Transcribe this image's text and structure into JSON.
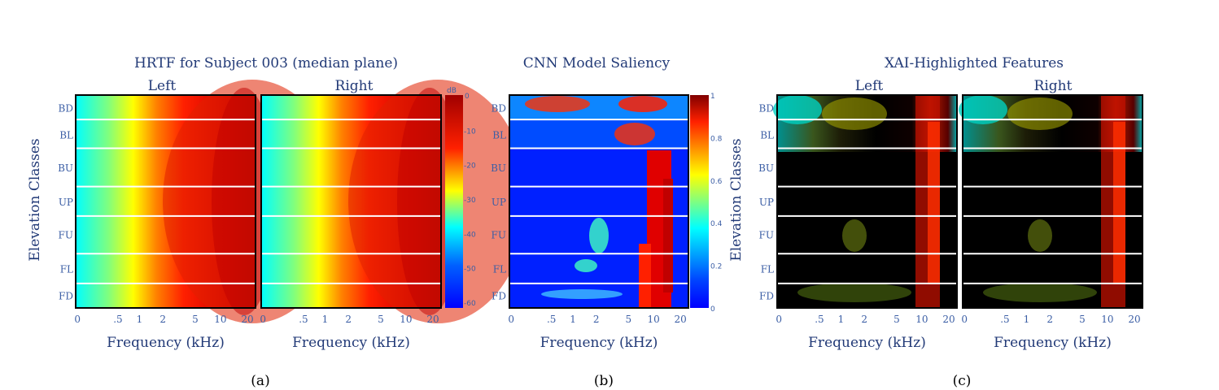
{
  "chart_data": [
    {
      "type": "heatmap",
      "title": "HRTF for Subject 003 (median plane)",
      "caption": "(a)",
      "panels": [
        "Left",
        "Right"
      ],
      "ylabel": "Elevation Classes",
      "xlabel": "Frequency (kHz)",
      "x_ticks": [
        "0",
        ".5",
        "1",
        "2",
        "5",
        "10",
        "20"
      ],
      "x_tick_values_khz": [
        0,
        0.5,
        1,
        2,
        5,
        10,
        20
      ],
      "elevation_classes": [
        "BD",
        "BL",
        "BU",
        "UP",
        "FU",
        "FL",
        "FD"
      ],
      "colorbar": {
        "unit": "dB",
        "ticks": [
          "0",
          "-10",
          "-20",
          "-30",
          "-40",
          "-50",
          "-60"
        ],
        "range": [
          -65,
          0
        ],
        "colormap": "jet"
      }
    },
    {
      "type": "heatmap",
      "title": "CNN Model Saliency",
      "caption": "(b)",
      "xlabel": "Frequency (kHz)",
      "x_ticks": [
        "0",
        ".5",
        "1",
        "2",
        "5",
        "10",
        "20"
      ],
      "x_tick_values_khz": [
        0,
        0.5,
        1,
        2,
        5,
        10,
        20
      ],
      "elevation_classes": [
        "BD",
        "BL",
        "BU",
        "UP",
        "FU",
        "FL",
        "FD"
      ],
      "colorbar": {
        "ticks": [
          "1",
          "0.8",
          "0.6",
          "0.4",
          "0.2",
          "0"
        ],
        "range": [
          0,
          1
        ],
        "colormap": "jet"
      }
    },
    {
      "type": "heatmap",
      "title": "XAI-Highlighted Features",
      "caption": "(c)",
      "panels": [
        "Left",
        "Right"
      ],
      "ylabel": "Elevation Classes",
      "xlabel": "Frequency (kHz)",
      "x_ticks": [
        "0",
        ".5",
        "1",
        "2",
        "5",
        "10",
        "20"
      ],
      "x_tick_values_khz": [
        0,
        0.5,
        1,
        2,
        5,
        10,
        20
      ],
      "elevation_classes": [
        "BD",
        "BL",
        "BU",
        "UP",
        "FU",
        "FL",
        "FD"
      ]
    }
  ]
}
